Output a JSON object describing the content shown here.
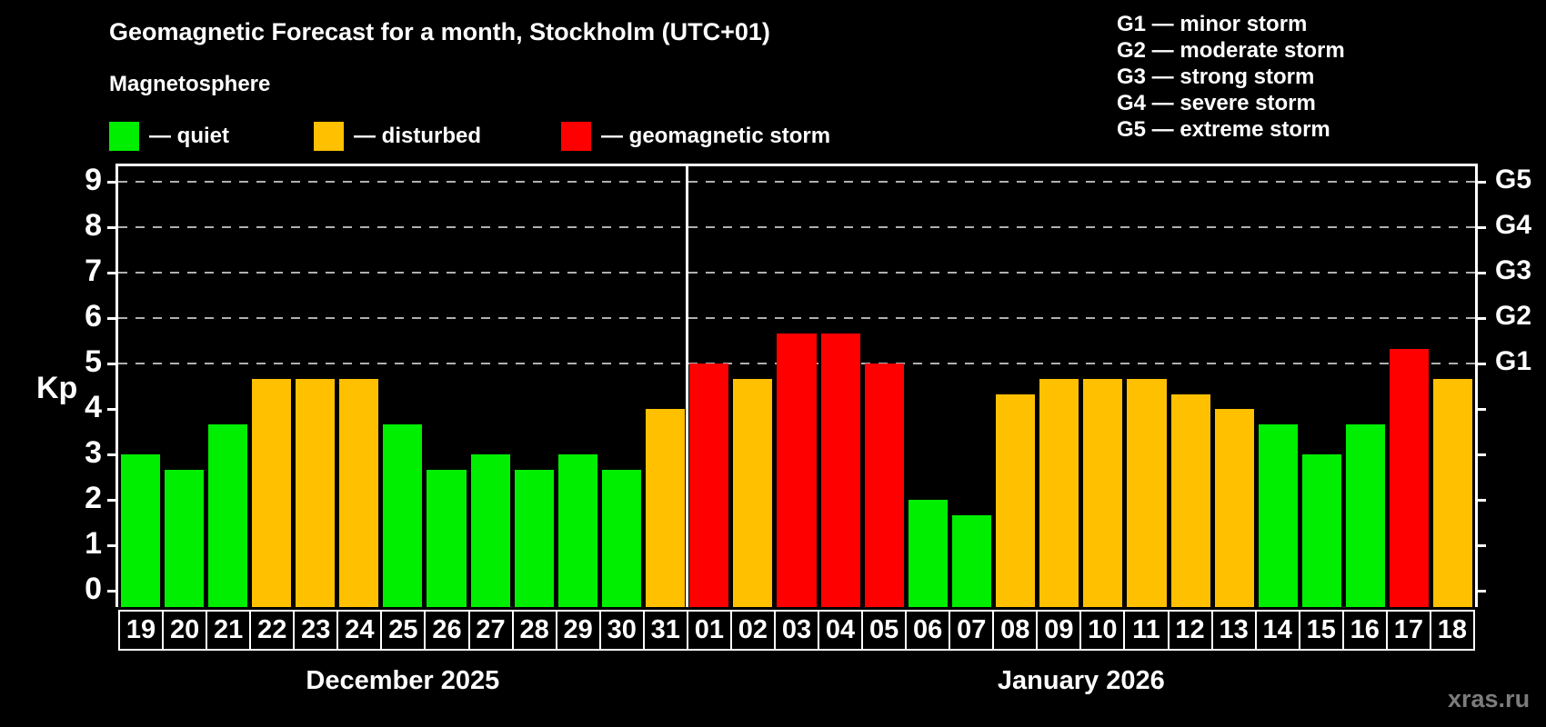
{
  "title": "Geomagnetic Forecast for a month, Stockholm (UTC+01)",
  "subtitle": "Magnetosphere",
  "legend": {
    "items": [
      {
        "key": "quiet",
        "label": "— quiet",
        "color": "#00ee00"
      },
      {
        "key": "disturbed",
        "label": "— disturbed",
        "color": "#ffc000"
      },
      {
        "key": "storm",
        "label": "— geomagnetic storm",
        "color": "#ff0000"
      }
    ]
  },
  "storm_scale_legend": [
    {
      "code": "G1",
      "label": "minor storm"
    },
    {
      "code": "G2",
      "label": "moderate storm"
    },
    {
      "code": "G3",
      "label": "strong storm"
    },
    {
      "code": "G4",
      "label": "severe storm"
    },
    {
      "code": "G5",
      "label": "extreme storm"
    }
  ],
  "watermark": "xras.ru",
  "chart_data": {
    "type": "bar",
    "title": "Geomagnetic Forecast for a month, Stockholm (UTC+01)",
    "ylabel": "Kp",
    "ylim": [
      -0.36,
      9.34
    ],
    "yticks": [
      0,
      1,
      2,
      3,
      4,
      5,
      6,
      7,
      8,
      9
    ],
    "gridlines_at": [
      5,
      6,
      7,
      8,
      9
    ],
    "grid": "dashed horizontal at storm levels only",
    "right_axis": [
      {
        "kp": 5,
        "label": "G1"
      },
      {
        "kp": 6,
        "label": "G2"
      },
      {
        "kp": 7,
        "label": "G3"
      },
      {
        "kp": 8,
        "label": "G4"
      },
      {
        "kp": 9,
        "label": "G5"
      }
    ],
    "months": [
      {
        "label": "December 2025",
        "days": 13
      },
      {
        "label": "January 2026",
        "days": 18
      }
    ],
    "categories": [
      "19",
      "20",
      "21",
      "22",
      "23",
      "24",
      "25",
      "26",
      "27",
      "28",
      "29",
      "30",
      "31",
      "01",
      "02",
      "03",
      "04",
      "05",
      "06",
      "07",
      "08",
      "09",
      "10",
      "11",
      "12",
      "13",
      "14",
      "15",
      "16",
      "17",
      "18"
    ],
    "values": [
      3.0,
      2.67,
      3.67,
      4.67,
      4.67,
      4.67,
      3.67,
      2.67,
      3.0,
      2.67,
      3.0,
      2.67,
      4.0,
      5.0,
      4.67,
      5.67,
      5.67,
      5.0,
      2.0,
      1.67,
      4.33,
      4.67,
      4.67,
      4.67,
      4.33,
      4.0,
      3.67,
      3.0,
      3.67,
      5.33,
      4.67
    ],
    "statuses": [
      "quiet",
      "quiet",
      "quiet",
      "disturbed",
      "disturbed",
      "disturbed",
      "quiet",
      "quiet",
      "quiet",
      "quiet",
      "quiet",
      "quiet",
      "disturbed",
      "storm",
      "disturbed",
      "storm",
      "storm",
      "storm",
      "quiet",
      "quiet",
      "disturbed",
      "disturbed",
      "disturbed",
      "disturbed",
      "disturbed",
      "disturbed",
      "quiet",
      "quiet",
      "quiet",
      "storm",
      "disturbed"
    ],
    "colors": {
      "quiet": "#00ee00",
      "disturbed": "#ffc000",
      "storm": "#ff0000"
    }
  }
}
